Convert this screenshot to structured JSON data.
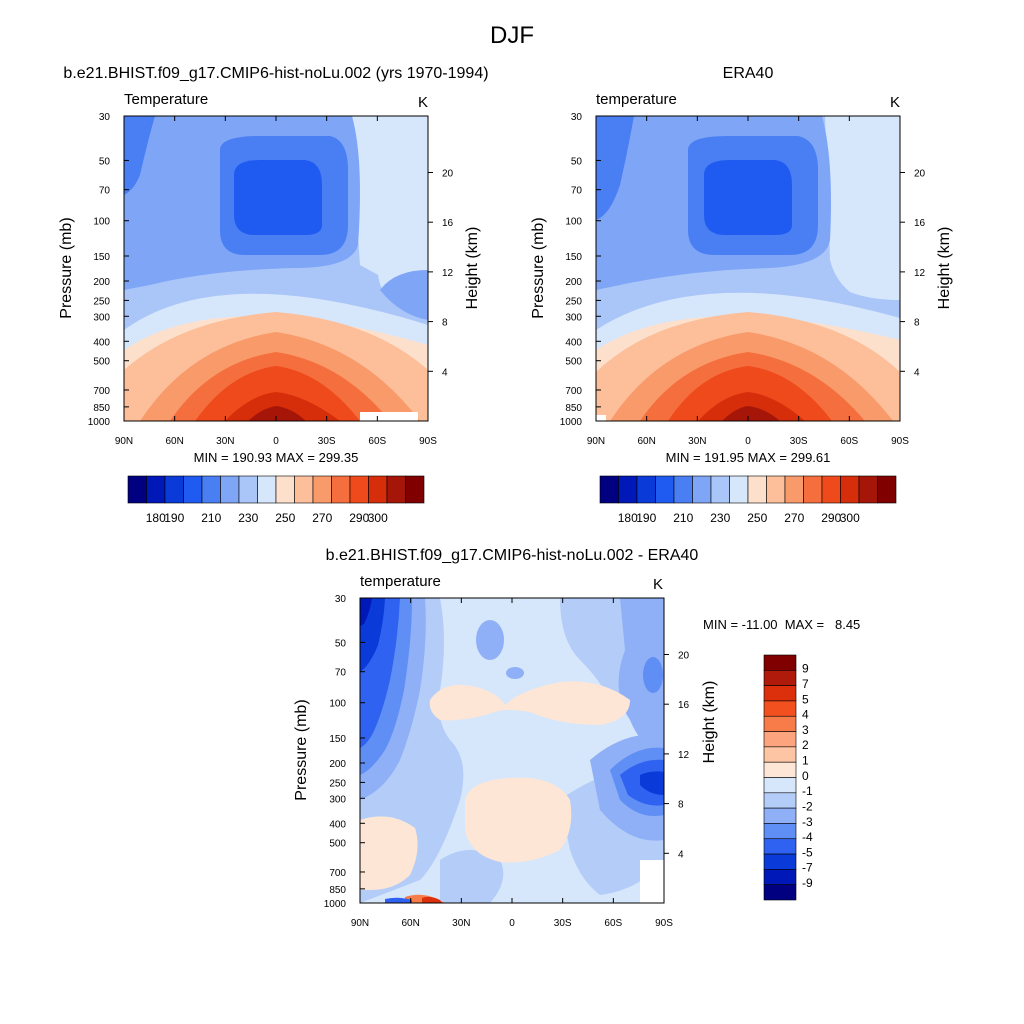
{
  "figure": {
    "title": "DJF"
  },
  "chart_data": [
    {
      "type": "heatmap",
      "panel_title": "b.e21.BHIST.f09_g17.CMIP6-hist-noLu.002 (yrs 1970-1994)",
      "variable_label": "Temperature",
      "units": "K",
      "xlabel": "",
      "ylabel": "Pressure (mb)",
      "y2label": "Height (km)",
      "x_ticks": [
        "90N",
        "60N",
        "30N",
        "0",
        "30S",
        "60S",
        "90S"
      ],
      "y_ticks": [
        30,
        50,
        70,
        100,
        150,
        200,
        250,
        300,
        400,
        500,
        700,
        850,
        1000
      ],
      "y2_ticks": [
        20,
        16,
        12,
        8,
        4
      ],
      "xlim": [
        90,
        -90
      ],
      "ylim": [
        1000,
        30
      ],
      "stats": "MIN = 190.93  MAX = 299.35",
      "colorbar_levels": [
        180,
        190,
        200,
        210,
        220,
        230,
        240,
        250,
        260,
        270,
        280,
        290,
        300
      ],
      "colorbar_labels": [
        "180",
        "190",
        "210",
        "230",
        "250",
        "270",
        "290",
        "300"
      ],
      "colors": [
        "#000080",
        "#0018b8",
        "#0a3ad8",
        "#1f5bf0",
        "#4a7ff4",
        "#7fa6f6",
        "#aac6f8",
        "#d6e6fb",
        "#fde0cc",
        "#fcbf9a",
        "#f99a6a",
        "#f56f3e",
        "#ef4a1b",
        "#d62d0a",
        "#a61608",
        "#800000"
      ]
    },
    {
      "type": "heatmap",
      "panel_title": "ERA40",
      "variable_label": "temperature",
      "units": "K",
      "xlabel": "",
      "ylabel": "Pressure (mb)",
      "y2label": "Height (km)",
      "x_ticks": [
        "90N",
        "60N",
        "30N",
        "0",
        "30S",
        "60S",
        "90S"
      ],
      "y_ticks": [
        30,
        50,
        70,
        100,
        150,
        200,
        250,
        300,
        400,
        500,
        700,
        850,
        1000
      ],
      "y2_ticks": [
        20,
        16,
        12,
        8,
        4
      ],
      "xlim": [
        90,
        -90
      ],
      "ylim": [
        1000,
        30
      ],
      "stats": "MIN = 191.95  MAX = 299.61",
      "colorbar_levels": [
        180,
        190,
        200,
        210,
        220,
        230,
        240,
        250,
        260,
        270,
        280,
        290,
        300
      ],
      "colorbar_labels": [
        "180",
        "190",
        "210",
        "230",
        "250",
        "270",
        "290",
        "300"
      ]
    },
    {
      "type": "heatmap",
      "panel_title": "b.e21.BHIST.f09_g17.CMIP6-hist-noLu.002 - ERA40",
      "variable_label": "temperature",
      "units": "K",
      "xlabel": "",
      "ylabel": "Pressure (mb)",
      "y2label": "Height (km)",
      "x_ticks": [
        "90N",
        "60N",
        "30N",
        "0",
        "30S",
        "60S",
        "90S"
      ],
      "y_ticks": [
        30,
        50,
        70,
        100,
        150,
        200,
        250,
        300,
        400,
        500,
        700,
        850,
        1000
      ],
      "y2_ticks": [
        20,
        16,
        12,
        8,
        4
      ],
      "xlim": [
        90,
        -90
      ],
      "ylim": [
        1000,
        30
      ],
      "stats": "MIN = -11.00  MAX =   8.45",
      "colorbar_levels": [
        -9,
        -7,
        -5,
        -4,
        -3,
        -2,
        -1,
        0,
        1,
        2,
        3,
        4,
        5,
        7,
        9
      ],
      "colorbar_labels": [
        "9",
        "7",
        "5",
        "4",
        "3",
        "2",
        "1",
        "0",
        "-1",
        "-2",
        "-3",
        "-4",
        "-5",
        "-7",
        "-9"
      ],
      "colors": [
        "#800000",
        "#b01a0a",
        "#dc300c",
        "#f2501f",
        "#f77c4a",
        "#fba47e",
        "#fdc5a4",
        "#fde6d6",
        "#d6e6fb",
        "#b3cdf8",
        "#8fb0f6",
        "#5f8ef4",
        "#2f62f0",
        "#0a3ad8",
        "#0018b8",
        "#000080"
      ]
    }
  ]
}
